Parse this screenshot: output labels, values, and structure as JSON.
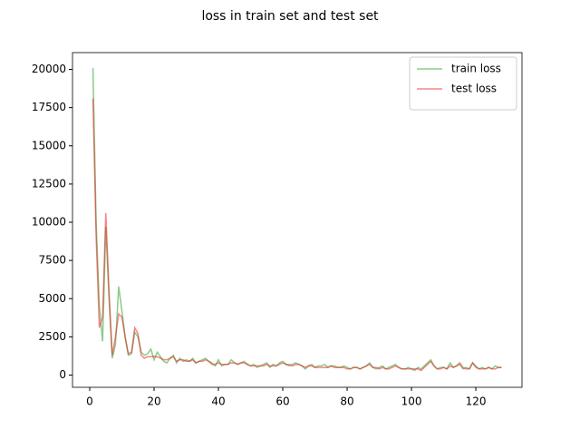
{
  "chart_data": {
    "type": "line",
    "title": "loss in train set and test set",
    "x": [
      1,
      2,
      3,
      4,
      5,
      6,
      7,
      8,
      9,
      10,
      11,
      12,
      13,
      14,
      15,
      16,
      17,
      18,
      19,
      20,
      21,
      22,
      23,
      24,
      25,
      26,
      27,
      28,
      29,
      30,
      31,
      32,
      33,
      34,
      35,
      36,
      37,
      38,
      39,
      40,
      41,
      42,
      43,
      44,
      45,
      46,
      47,
      48,
      49,
      50,
      51,
      52,
      53,
      54,
      55,
      56,
      57,
      58,
      59,
      60,
      61,
      62,
      63,
      64,
      65,
      66,
      67,
      68,
      69,
      70,
      71,
      72,
      73,
      74,
      75,
      76,
      77,
      78,
      79,
      80,
      81,
      82,
      83,
      84,
      85,
      86,
      87,
      88,
      89,
      90,
      91,
      92,
      93,
      94,
      95,
      96,
      97,
      98,
      99,
      100,
      101,
      102,
      103,
      104,
      105,
      106,
      107,
      108,
      109,
      110,
      111,
      112,
      113,
      114,
      115,
      116,
      117,
      118,
      119,
      120,
      121,
      122,
      123,
      124,
      125,
      126,
      127,
      128
    ],
    "series": [
      {
        "name": "train loss",
        "color": "#2ca02c",
        "values": [
          20100,
          10000,
          4500,
          2200,
          9700,
          5000,
          1100,
          2000,
          5800,
          4200,
          2500,
          1300,
          1400,
          2800,
          2500,
          1500,
          1300,
          1400,
          1700,
          1000,
          1500,
          1200,
          900,
          800,
          1100,
          1300,
          800,
          1100,
          900,
          1000,
          900,
          1100,
          800,
          900,
          1000,
          1100,
          900,
          800,
          600,
          1000,
          600,
          700,
          700,
          1000,
          800,
          700,
          800,
          900,
          700,
          600,
          700,
          500,
          600,
          700,
          800,
          500,
          700,
          600,
          800,
          900,
          700,
          600,
          700,
          800,
          700,
          600,
          400,
          600,
          700,
          500,
          600,
          600,
          700,
          500,
          600,
          600,
          500,
          500,
          600,
          500,
          400,
          500,
          500,
          400,
          500,
          600,
          800,
          500,
          400,
          500,
          600,
          400,
          500,
          600,
          700,
          500,
          400,
          400,
          500,
          400,
          300,
          500,
          400,
          600,
          800,
          1000,
          600,
          400,
          500,
          500,
          400,
          800,
          500,
          600,
          700,
          400,
          500,
          400,
          800,
          600,
          400,
          500,
          400,
          500,
          400,
          600,
          500,
          500
        ]
      },
      {
        "name": "test loss",
        "color": "#e8231f",
        "values": [
          18100,
          9000,
          3100,
          3800,
          10600,
          5500,
          1300,
          2500,
          4000,
          3800,
          2500,
          1400,
          1500,
          3100,
          2700,
          1300,
          1100,
          1200,
          1200,
          1200,
          1200,
          1100,
          1000,
          1000,
          1100,
          1200,
          900,
          1000,
          1000,
          900,
          900,
          1000,
          800,
          900,
          900,
          1000,
          900,
          700,
          700,
          800,
          700,
          700,
          700,
          800,
          800,
          700,
          800,
          800,
          700,
          600,
          600,
          600,
          600,
          600,
          700,
          600,
          600,
          600,
          700,
          800,
          700,
          700,
          600,
          700,
          700,
          600,
          500,
          600,
          600,
          500,
          500,
          500,
          500,
          500,
          600,
          500,
          500,
          500,
          500,
          400,
          400,
          500,
          500,
          400,
          500,
          600,
          700,
          500,
          500,
          400,
          500,
          400,
          400,
          500,
          600,
          500,
          400,
          400,
          400,
          400,
          400,
          400,
          300,
          500,
          700,
          900,
          600,
          400,
          400,
          500,
          400,
          600,
          500,
          600,
          800,
          500,
          400,
          400,
          800,
          500,
          400,
          400,
          400,
          500,
          400,
          400,
          500,
          500
        ]
      }
    ],
    "xlim": [
      -5.35,
      134.35
    ],
    "ylim": [
      -800,
      21100
    ],
    "xticks": [
      0,
      20,
      40,
      60,
      80,
      100,
      120
    ],
    "yticks": [
      0,
      2500,
      5000,
      7500,
      10000,
      12500,
      15000,
      17500,
      20000
    ],
    "legend": "upper right"
  }
}
